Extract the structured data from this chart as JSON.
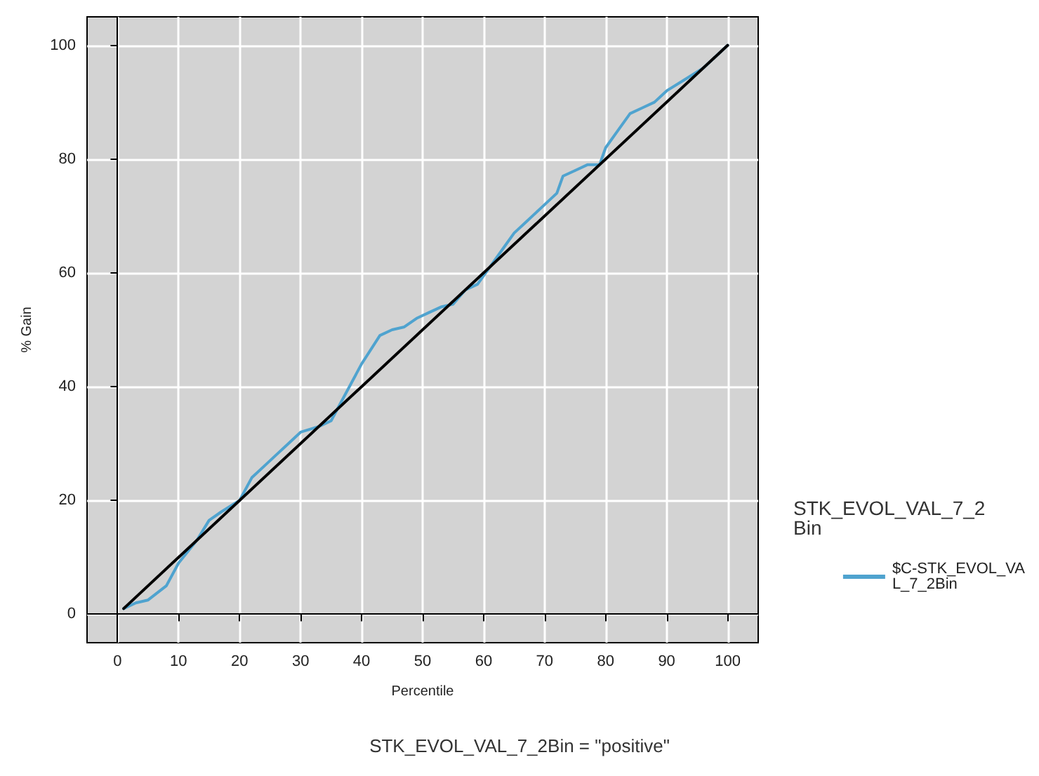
{
  "chart_data": {
    "type": "line",
    "xlabel": "Percentile",
    "ylabel": "% Gain",
    "legend_title": "STK_EVOL_VAL_7_2Bin",
    "annotations": [
      "STK_EVOL_VAL_7_2Bin = \"positive\""
    ],
    "series": [
      {
        "name": "$C-STK_EVOL_VAL_7_2Bin",
        "color": "#4fa3cf",
        "x": [
          1,
          3,
          5,
          8,
          10,
          13,
          15,
          17,
          20,
          22,
          24,
          26,
          28,
          30,
          33,
          35,
          37,
          40,
          43,
          45,
          47,
          49,
          51,
          53,
          55,
          57,
          59,
          61,
          63,
          65,
          67,
          70,
          72,
          73,
          75,
          77,
          79,
          80,
          82,
          84,
          86,
          88,
          90,
          93,
          96,
          98,
          100
        ],
        "values": [
          1,
          2,
          2.5,
          5,
          9,
          13,
          16.5,
          18,
          20,
          24,
          26,
          28,
          30,
          32,
          33,
          34,
          38,
          44,
          49,
          50,
          50.5,
          52,
          53,
          54,
          54.5,
          57,
          58,
          61,
          64,
          67,
          69,
          72,
          74,
          77,
          78,
          79,
          79,
          82,
          85,
          88,
          89,
          90,
          92,
          94,
          96,
          98,
          100
        ]
      },
      {
        "color": "#000000",
        "x": [
          1,
          100
        ],
        "values": [
          1,
          100
        ]
      }
    ],
    "xlim": [
      -5,
      105
    ],
    "ylim": [
      -5,
      105
    ],
    "xticks": [
      0,
      10,
      20,
      30,
      40,
      50,
      60,
      70,
      80,
      90,
      100
    ],
    "yticks": [
      0,
      20,
      40,
      60,
      80,
      100
    ],
    "grid": true,
    "legend": "right",
    "marker": "none",
    "line_style": "solid"
  }
}
